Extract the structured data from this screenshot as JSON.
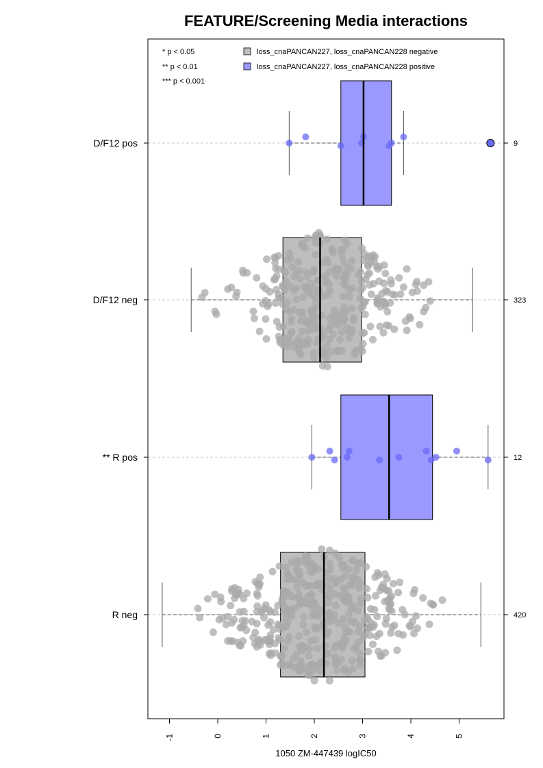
{
  "chart_data": {
    "type": "box",
    "orientation": "horizontal",
    "title": "FEATURE/Screening Media interactions",
    "xlabel": "1050 ZM-447439 logIC50",
    "xlim": [
      -1.45,
      5.9
    ],
    "x_ticks": [
      -1,
      0,
      1,
      2,
      3,
      4,
      5
    ],
    "x_tick_labels": [
      "-1",
      "0",
      "1",
      "2",
      "3",
      "4",
      "5"
    ],
    "significance_legend": [
      "* p < 0.05",
      "** p < 0.01",
      "*** p < 0.001"
    ],
    "legend_position": "top",
    "legend": [
      {
        "label": "loss_cnaPANCAN227, loss_cnaPANCAN228 negative",
        "color": "#bebebe"
      },
      {
        "label": "loss_cnaPANCAN227, loss_cnaPANCAN228 positive",
        "color": "#9999ff"
      }
    ],
    "colors": {
      "negative_box": "#bebebe",
      "positive_box": "#9999ff",
      "negative_point": "#aaaaaa",
      "positive_point": "#6a6af5"
    },
    "groups": [
      {
        "label": "D/F12 pos",
        "n": "9",
        "status": "positive",
        "whisker_low": 1.48,
        "q1": 2.55,
        "median": 3.02,
        "q3": 3.6,
        "whisker_high": 3.85,
        "outliers": [
          5.65
        ],
        "points": [
          1.48,
          1.82,
          2.55,
          2.98,
          3.02,
          3.55,
          3.6,
          3.85
        ]
      },
      {
        "label": "D/F12 neg",
        "n": "323",
        "status": "negative",
        "whisker_low": -0.55,
        "q1": 1.35,
        "median": 2.12,
        "q3": 2.98,
        "whisker_high": 5.28,
        "outliers": [],
        "points": []
      },
      {
        "label": "** R pos",
        "n": "12",
        "status": "positive",
        "whisker_low": 1.95,
        "q1": 2.55,
        "median": 3.55,
        "q3": 4.45,
        "whisker_high": 5.6,
        "outliers": [],
        "points": [
          1.95,
          2.32,
          2.42,
          2.68,
          2.72,
          3.35,
          3.75,
          4.32,
          4.42,
          4.52,
          4.95,
          5.6
        ]
      },
      {
        "label": "R neg",
        "n": "420",
        "status": "negative",
        "whisker_low": -1.15,
        "q1": 1.3,
        "median": 2.2,
        "q3": 3.05,
        "whisker_high": 5.45,
        "outliers": [],
        "points": []
      }
    ]
  }
}
